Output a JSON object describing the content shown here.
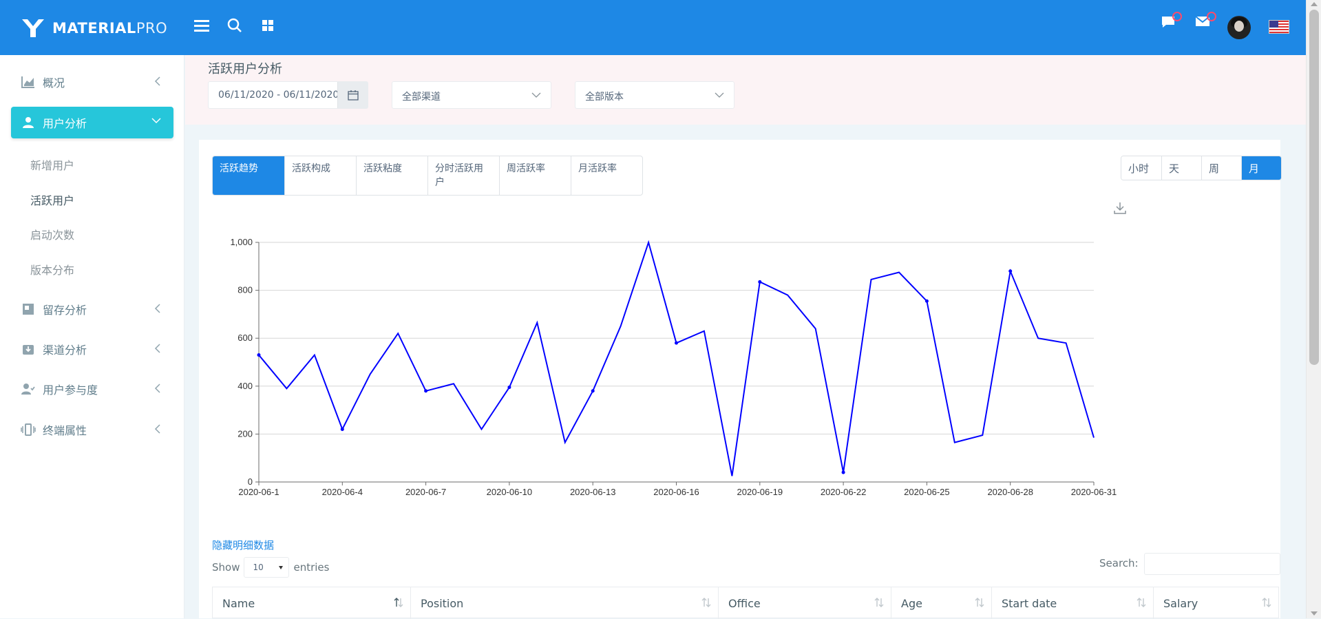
{
  "brand": {
    "name_bold": "MATERIAL",
    "name_light": "PRO"
  },
  "topbar": {
    "icons": [
      "menu-icon",
      "search-icon",
      "grid-icon"
    ],
    "right_icons": [
      "message-icon",
      "mail-icon",
      "avatar",
      "us-flag-icon"
    ]
  },
  "sidebar": {
    "items": [
      {
        "label": "概况",
        "icon": "chart-icon"
      },
      {
        "label": "用户分析",
        "icon": "user-icon",
        "active": true
      },
      {
        "label": "留存分析",
        "icon": "grid-box-icon"
      },
      {
        "label": "渠道分析",
        "icon": "download-box-icon"
      },
      {
        "label": "用户参与度",
        "icon": "user-check-icon"
      },
      {
        "label": "终端属性",
        "icon": "vibrate-icon"
      }
    ],
    "subitems": [
      {
        "label": "新增用户"
      },
      {
        "label": "活跃用户",
        "active": true
      },
      {
        "label": "启动次数"
      },
      {
        "label": "版本分布"
      }
    ]
  },
  "filters": {
    "page_title": "活跃用户分析",
    "date_range": "06/11/2020 - 06/11/2020",
    "channel": "全部渠道",
    "version": "全部版本"
  },
  "tabs": [
    "活跃趋势",
    "活跃构成",
    "活跃粘度",
    "分时活跃用户",
    "周活跃率",
    "月活跃率"
  ],
  "period": [
    "小时",
    "天",
    "周",
    "月"
  ],
  "table": {
    "toggle_label": "隐藏明细数据",
    "show_label": "Show",
    "entries_value": "10",
    "entries_label": "entries",
    "search_label": "Search:",
    "columns": [
      "Name",
      "Position",
      "Office",
      "Age",
      "Start date",
      "Salary"
    ]
  },
  "colors": {
    "primary": "#1e88e5",
    "sidebar_active": "#26c6da",
    "line": "#0000ff"
  },
  "chart_data": {
    "type": "line",
    "x": [
      "2020-06-1",
      "2020-06-2",
      "2020-06-3",
      "2020-06-4",
      "2020-06-5",
      "2020-06-6",
      "2020-06-7",
      "2020-06-8",
      "2020-06-9",
      "2020-06-10",
      "2020-06-11",
      "2020-06-12",
      "2020-06-13",
      "2020-06-14",
      "2020-06-15",
      "2020-06-16",
      "2020-06-17",
      "2020-06-18",
      "2020-06-19",
      "2020-06-20",
      "2020-06-21",
      "2020-06-22",
      "2020-06-23",
      "2020-06-24",
      "2020-06-25",
      "2020-06-26",
      "2020-06-27",
      "2020-06-28",
      "2020-06-29",
      "2020-06-30",
      "2020-06-31"
    ],
    "tick_labels": [
      "2020-06-1",
      "2020-06-4",
      "2020-06-7",
      "2020-06-10",
      "2020-06-13",
      "2020-06-16",
      "2020-06-19",
      "2020-06-22",
      "2020-06-25",
      "2020-06-28",
      "2020-06-31"
    ],
    "values": [
      530,
      390,
      530,
      220,
      450,
      620,
      380,
      410,
      220,
      395,
      665,
      165,
      380,
      650,
      1000,
      580,
      630,
      25,
      835,
      780,
      640,
      40,
      845,
      875,
      755,
      165,
      195,
      880,
      600,
      580,
      185
    ],
    "marked_indices": [
      0,
      3,
      6,
      9,
      12,
      15,
      18,
      21,
      24,
      27
    ],
    "ylim": [
      0,
      1000
    ],
    "yticks": [
      0,
      200,
      400,
      600,
      800,
      1000
    ],
    "ytick_labels": [
      "0",
      "200",
      "400",
      "600",
      "800",
      "1,000"
    ],
    "grid": true
  }
}
